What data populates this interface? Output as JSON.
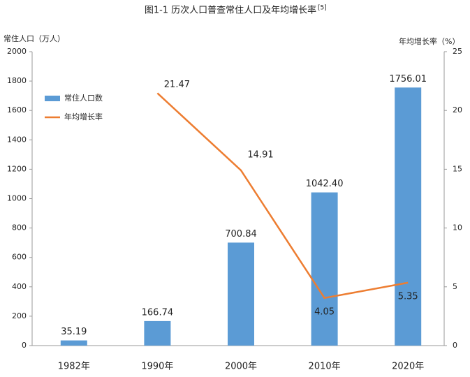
{
  "chart_data": {
    "type": "bar",
    "title": "图1-1 历次人口普查常住人口及年均增长率",
    "title_ref": "[5]",
    "y_label": "常住人口（万人）",
    "y2_label": "年均增长率（%）",
    "categories": [
      "1982年",
      "1990年",
      "2000年",
      "2010年",
      "2020年"
    ],
    "series": [
      {
        "name": "常住人口数",
        "color": "#5b9bd5",
        "type": "bar",
        "values": [
          35.19,
          166.74,
          700.84,
          1042.4,
          1756.01
        ],
        "value_labels": [
          "35.19",
          "166.74",
          "700.84",
          "1042.40",
          "1756.01"
        ]
      },
      {
        "name": "年均增长率",
        "color": "#ed7d31",
        "type": "line",
        "axis": "y2",
        "values": [
          null,
          21.47,
          14.91,
          4.05,
          5.35
        ]
      }
    ],
    "ylim": [
      0,
      2000
    ],
    "yticks": [
      0,
      200,
      400,
      600,
      800,
      1000,
      1200,
      1400,
      1600,
      1800,
      2000
    ],
    "y2lim": [
      0,
      25
    ],
    "y2ticks": [
      0,
      5,
      10,
      15,
      20,
      25
    ],
    "grid": false,
    "legend": "upper left"
  }
}
